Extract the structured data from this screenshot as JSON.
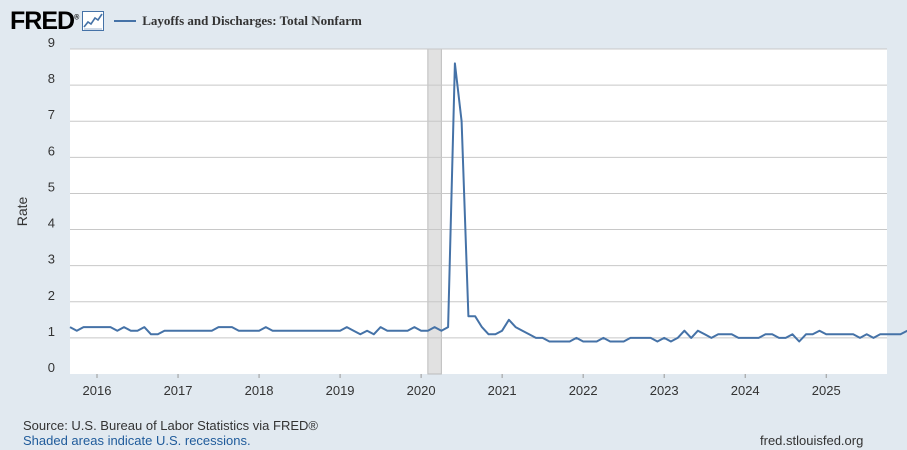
{
  "header": {
    "logo_text": "FRED",
    "logo_mark": "®",
    "series_title": "Layoffs and Discharges: Total Nonfarm",
    "icon": "line-chart-icon"
  },
  "footer": {
    "source": "Source: U.S. Bureau of Labor Statistics via FRED®",
    "recessions_note": "Shaded areas indicate U.S. recessions.",
    "site": "fred.stlouisfed.org"
  },
  "colors": {
    "background": "#e1e9f0",
    "plot_bg": "#ffffff",
    "line": "#4572a7",
    "recession": "#e1e1e1",
    "grid": "#c8c8c8"
  },
  "chart_data": {
    "type": "line",
    "title": "Layoffs and Discharges: Total Nonfarm",
    "xlabel": "",
    "ylabel": "Rate",
    "ylim": [
      0,
      9
    ],
    "yticks": [
      0,
      1,
      2,
      3,
      4,
      5,
      6,
      7,
      8,
      9
    ],
    "xlim": [
      "2015-09",
      "2025-10"
    ],
    "xticks": [
      "2016",
      "2017",
      "2018",
      "2019",
      "2020",
      "2021",
      "2022",
      "2023",
      "2024",
      "2025"
    ],
    "grid": true,
    "recessions": [
      {
        "start": "2020-02",
        "end": "2020-04"
      }
    ],
    "series": [
      {
        "name": "Layoffs and Discharges: Total Nonfarm",
        "start": "2015-09",
        "frequency": "monthly",
        "values": [
          1.3,
          1.2,
          1.3,
          1.3,
          1.3,
          1.3,
          1.3,
          1.2,
          1.3,
          1.2,
          1.2,
          1.3,
          1.1,
          1.1,
          1.2,
          1.2,
          1.2,
          1.2,
          1.2,
          1.2,
          1.2,
          1.2,
          1.3,
          1.3,
          1.3,
          1.2,
          1.2,
          1.2,
          1.2,
          1.3,
          1.2,
          1.2,
          1.2,
          1.2,
          1.2,
          1.2,
          1.2,
          1.2,
          1.2,
          1.2,
          1.2,
          1.3,
          1.2,
          1.1,
          1.2,
          1.1,
          1.3,
          1.2,
          1.2,
          1.2,
          1.2,
          1.3,
          1.2,
          1.2,
          1.3,
          1.2,
          1.3,
          8.6,
          7.0,
          1.6,
          1.6,
          1.3,
          1.1,
          1.1,
          1.2,
          1.5,
          1.3,
          1.2,
          1.1,
          1.0,
          1.0,
          0.9,
          0.9,
          0.9,
          0.9,
          1.0,
          0.9,
          0.9,
          0.9,
          1.0,
          0.9,
          0.9,
          0.9,
          1.0,
          1.0,
          1.0,
          1.0,
          0.9,
          1.0,
          0.9,
          1.0,
          1.2,
          1.0,
          1.2,
          1.1,
          1.0,
          1.1,
          1.1,
          1.1,
          1.0,
          1.0,
          1.0,
          1.0,
          1.1,
          1.1,
          1.0,
          1.0,
          1.1,
          0.9,
          1.1,
          1.1,
          1.2,
          1.1,
          1.1,
          1.1,
          1.1,
          1.1,
          1.0,
          1.1,
          1.0,
          1.1,
          1.1,
          1.1,
          1.1,
          1.2
        ]
      }
    ]
  }
}
